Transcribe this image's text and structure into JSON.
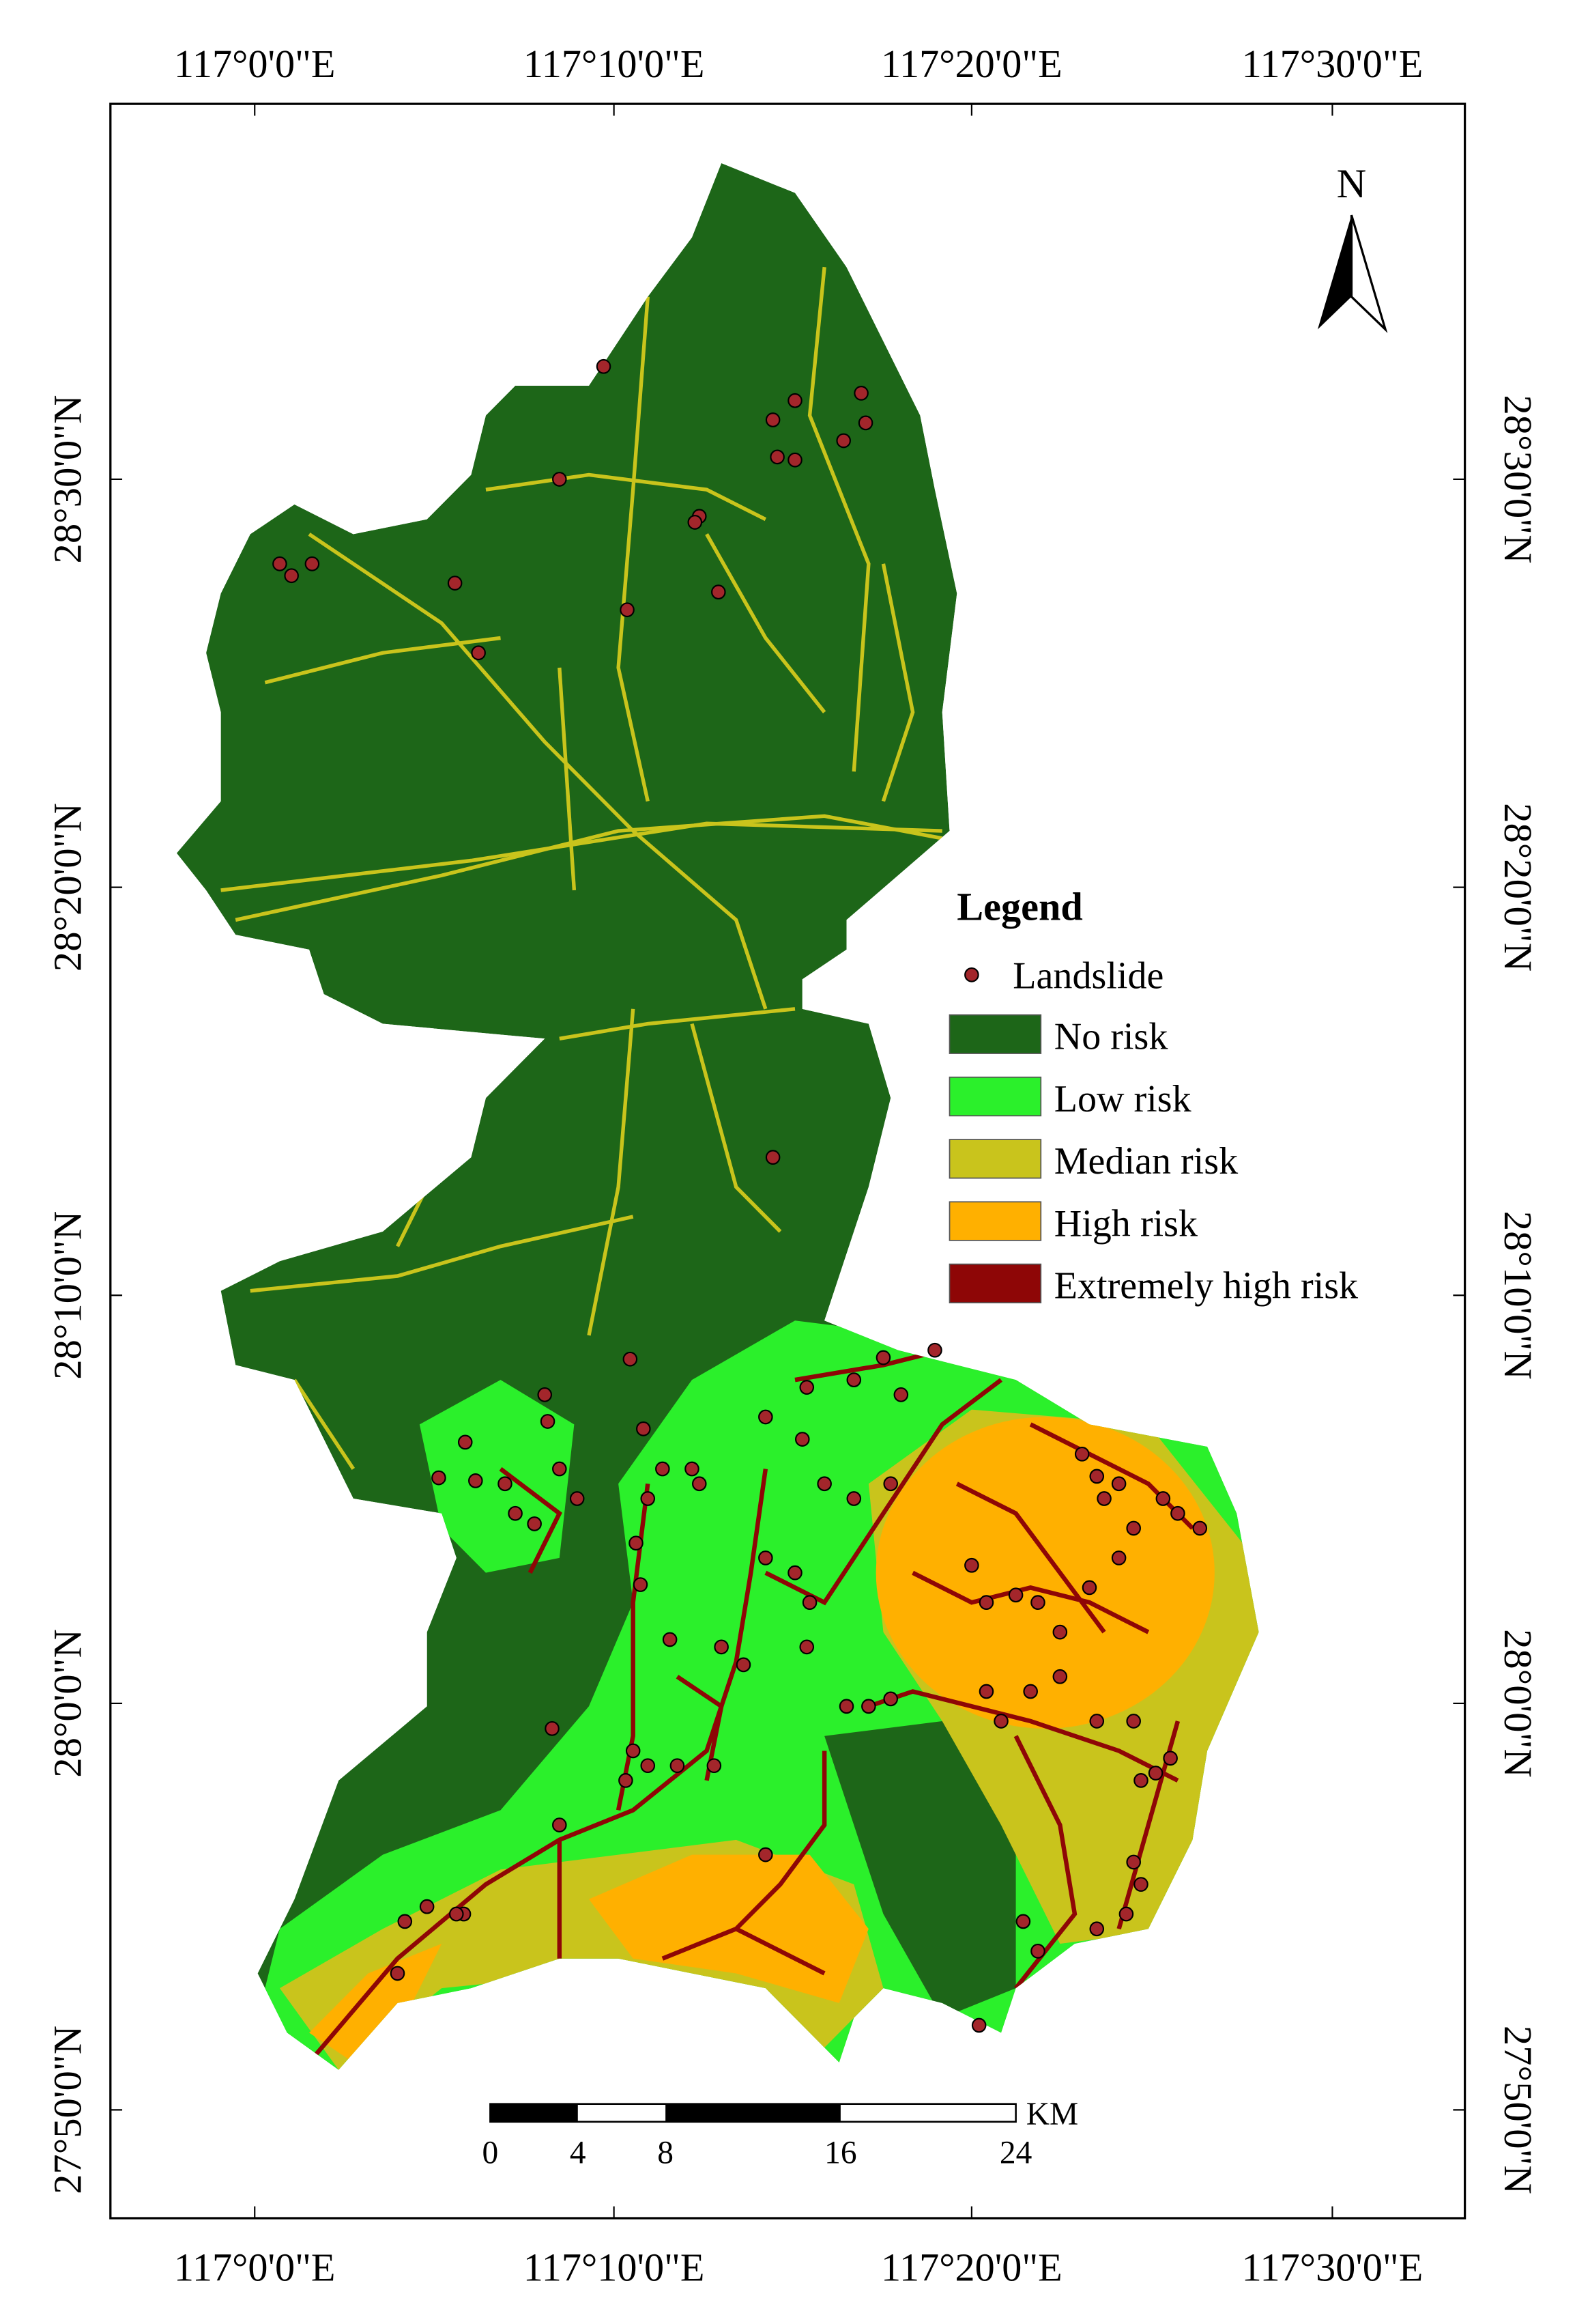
{
  "map": {
    "longitude_labels": [
      "117°0'0\"E",
      "117°10'0\"E",
      "117°20'0\"E",
      "117°30'0\"E"
    ],
    "latitude_labels": [
      "28°30'0\"N",
      "28°20'0\"N",
      "28°10'0\"N",
      "28°0'0\"N",
      "27°50'0\"N"
    ],
    "north": "N",
    "scale_bar": {
      "unit": "KM",
      "ticks": [
        0,
        4,
        8,
        16,
        24
      ]
    },
    "legend": {
      "title": "Legend",
      "point": {
        "label": "Landslide",
        "color": "#a3262b"
      },
      "classes": [
        {
          "label": "No risk",
          "color": "#1d6618"
        },
        {
          "label": "Low risk",
          "color": "#2bf02b"
        },
        {
          "label": "Median risk",
          "color": "#c9c41c"
        },
        {
          "label": "High risk",
          "color": "#ffb000"
        },
        {
          "label": "Extremely high risk",
          "color": "#8e0606"
        }
      ]
    }
  }
}
